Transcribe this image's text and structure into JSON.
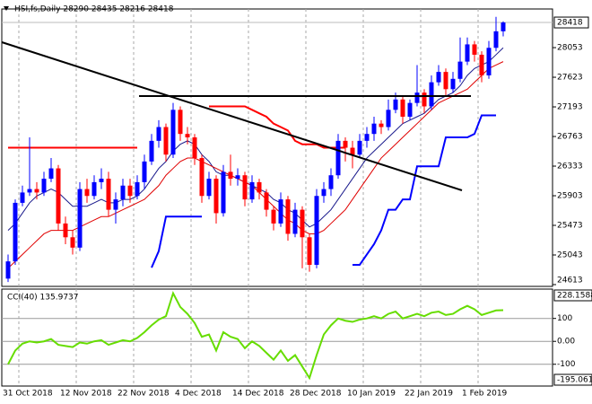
{
  "chart_data": [
    {
      "type": "candlestick",
      "title": "HSI,fs,Daily  28290 28435 28216 28418",
      "categories": [
        "31 Oct 2018",
        null,
        null,
        null,
        null,
        null,
        null,
        null,
        "12 Nov 2018",
        null,
        null,
        null,
        null,
        null,
        null,
        null,
        "22 Nov 2018",
        null,
        null,
        null,
        null,
        null,
        null,
        null,
        "4 Dec 2018",
        null,
        null,
        null,
        null,
        null,
        null,
        null,
        "14 Dec 2018",
        null,
        null,
        null,
        null,
        null,
        null,
        null,
        "28 Dec 2018",
        null,
        null,
        null,
        null,
        null,
        null,
        null,
        "10 Jan 2019",
        null,
        null,
        null,
        null,
        null,
        null,
        null,
        "22 Jan 2019",
        null,
        null,
        null,
        null,
        null,
        null,
        null,
        "1 Feb 2019",
        null,
        null,
        null,
        null,
        null
      ],
      "open": [
        24700,
        24950,
        25800,
        25950,
        26000,
        25950,
        26150,
        26300,
        25500,
        25300,
        25150,
        26000,
        25900,
        26100,
        26150,
        25700,
        25850,
        26050,
        25900,
        26100,
        26400,
        26700,
        26900,
        26500,
        27150,
        26800,
        26750,
        26450,
        25900,
        26150,
        25650,
        26250,
        26150,
        26200,
        25850,
        26100,
        25950,
        25700,
        25500,
        25850,
        25350,
        25700,
        25300,
        24900,
        25900,
        26000,
        26200,
        26700,
        26600,
        26500,
        26700,
        26800,
        26950,
        26900,
        27150,
        27300,
        27050,
        27250,
        27400,
        27200,
        27550,
        27700,
        27450,
        27600,
        27850,
        28100,
        27950,
        27650,
        28050,
        28290
      ],
      "high": [
        25050,
        25850,
        26050,
        26750,
        26100,
        26250,
        26450,
        26350,
        25600,
        25400,
        26100,
        26150,
        26200,
        26300,
        26250,
        25950,
        26150,
        26150,
        26200,
        26500,
        26800,
        27000,
        26950,
        27250,
        27200,
        26900,
        26800,
        26500,
        26250,
        26200,
        26350,
        26500,
        26300,
        26250,
        26200,
        26150,
        26000,
        25750,
        25950,
        25900,
        25800,
        25750,
        25350,
        26000,
        26100,
        26300,
        26800,
        26750,
        26700,
        26800,
        26900,
        27050,
        27000,
        27300,
        27400,
        27350,
        27300,
        27800,
        27450,
        27650,
        27800,
        27750,
        27700,
        28200,
        28200,
        28150,
        28000,
        28150,
        28500,
        28435
      ],
      "low": [
        24650,
        24900,
        25750,
        25900,
        25850,
        25900,
        26100,
        25400,
        25200,
        25050,
        25100,
        25800,
        25850,
        26000,
        25600,
        25500,
        25750,
        25800,
        25850,
        26000,
        26350,
        26600,
        26400,
        26450,
        26700,
        26650,
        26350,
        25800,
        25850,
        25500,
        25600,
        26050,
        26050,
        25750,
        25800,
        25850,
        25600,
        25400,
        25450,
        25250,
        25300,
        24850,
        24800,
        24850,
        25800,
        25900,
        26150,
        26400,
        26300,
        26450,
        26600,
        26700,
        26800,
        26850,
        27100,
        26950,
        27000,
        27200,
        27100,
        27150,
        27500,
        27350,
        27400,
        27550,
        27800,
        27850,
        27550,
        27600,
        28000,
        28216
      ],
      "close": [
        24950,
        25800,
        25950,
        26000,
        25950,
        26150,
        26300,
        25500,
        25300,
        25150,
        26000,
        25900,
        26100,
        26150,
        25700,
        25850,
        26050,
        25900,
        26100,
        26400,
        26700,
        26900,
        26500,
        27150,
        26800,
        26750,
        26450,
        25900,
        26150,
        25650,
        26250,
        26150,
        26200,
        25850,
        26100,
        25950,
        25700,
        25500,
        25850,
        25350,
        25700,
        25300,
        24900,
        25900,
        26000,
        26200,
        26700,
        26600,
        26500,
        26700,
        26800,
        26950,
        26900,
        27150,
        27300,
        27050,
        27250,
        27400,
        27200,
        27550,
        27700,
        27450,
        27600,
        27850,
        28100,
        27950,
        27650,
        28050,
        28290,
        28418
      ],
      "up_color": "#0000ff",
      "down_color": "#ff0000",
      "lines": [
        {
          "color": "#1a1a8c",
          "width": 1,
          "values": [
            25400,
            25500,
            25650,
            25800,
            25900,
            25950,
            26000,
            25950,
            25850,
            25750,
            25750,
            25750,
            25800,
            25850,
            25800,
            25800,
            25850,
            25850,
            25900,
            26000,
            26150,
            26300,
            26400,
            26550,
            26650,
            26700,
            26650,
            26500,
            26400,
            26250,
            26200,
            26200,
            26150,
            26100,
            26050,
            26000,
            25950,
            25850,
            25800,
            25700,
            25650,
            25550,
            25450,
            25500,
            25600,
            25700,
            25850,
            26000,
            26150,
            26300,
            26450,
            26550,
            26650,
            26750,
            26850,
            26950,
            27000,
            27050,
            27100,
            27200,
            27300,
            27350,
            27400,
            27500,
            27650,
            27750,
            27800,
            27850,
            27950,
            28050
          ]
        },
        {
          "color": "#e00000",
          "width": 1,
          "values": [
            24850,
            24950,
            25050,
            25150,
            25250,
            25350,
            25400,
            25400,
            25400,
            25400,
            25450,
            25500,
            25550,
            25600,
            25600,
            25650,
            25700,
            25750,
            25800,
            25850,
            25950,
            26050,
            26200,
            26300,
            26400,
            26450,
            26450,
            26400,
            26350,
            26300,
            26250,
            26200,
            26150,
            26100,
            26050,
            25950,
            25850,
            25750,
            25650,
            25550,
            25500,
            25400,
            25350,
            25350,
            25400,
            25500,
            25600,
            25700,
            25850,
            26000,
            26150,
            26300,
            26450,
            26550,
            26650,
            26750,
            26850,
            26950,
            27050,
            27150,
            27250,
            27300,
            27350,
            27400,
            27450,
            27550,
            27650,
            27750,
            27800,
            27850
          ]
        },
        {
          "color": "#ff0000",
          "width": 2,
          "values": [
            26600,
            26600,
            26600,
            26600,
            26600,
            26600,
            26600,
            26600,
            26600,
            26600,
            26600,
            26600,
            26600,
            26600,
            26600,
            26600,
            26600,
            26600,
            26600,
            null,
            null,
            null,
            null,
            null,
            null,
            null,
            null,
            null,
            27200,
            27200,
            27200,
            27200,
            27200,
            27200,
            27150,
            27100,
            27050,
            26950,
            26900,
            26850,
            26700,
            26650,
            26650,
            26650,
            26600,
            26600,
            26600,
            26600,
            null,
            null,
            null,
            null,
            null,
            null,
            null,
            null,
            null,
            null,
            null,
            null,
            null,
            null,
            null,
            null,
            null,
            null,
            null,
            null,
            null,
            null
          ]
        },
        {
          "color": "#0000ff",
          "width": 2,
          "values": [
            null,
            null,
            null,
            null,
            null,
            null,
            null,
            null,
            null,
            null,
            null,
            null,
            null,
            null,
            null,
            null,
            null,
            null,
            null,
            null,
            24860,
            25100,
            25600,
            25600,
            25600,
            25600,
            25600,
            25600,
            null,
            null,
            null,
            null,
            null,
            null,
            null,
            null,
            null,
            null,
            null,
            null,
            null,
            null,
            null,
            null,
            null,
            null,
            null,
            null,
            24900,
            24900,
            25050,
            25200,
            25400,
            25700,
            25700,
            25850,
            25850,
            26330,
            26330,
            26330,
            26330,
            26750,
            26750,
            26750,
            26750,
            26800,
            27070,
            27070,
            27070,
            null
          ]
        }
      ],
      "last_price": 28418,
      "ylim": [
        24587,
        28614
      ],
      "yticks": [
        24613,
        25043,
        25473,
        25903,
        26333,
        26763,
        27193,
        27623,
        28053
      ],
      "grid": true
    },
    {
      "type": "line",
      "title": "CCI(40) 135.9737",
      "color": "#66dd00",
      "values": [
        -100,
        -40,
        -10,
        0,
        -5,
        0,
        10,
        -15,
        -20,
        -25,
        -5,
        -10,
        0,
        5,
        -15,
        -5,
        5,
        0,
        15,
        40,
        70,
        95,
        110,
        210,
        150,
        120,
        80,
        20,
        30,
        -40,
        40,
        20,
        10,
        -30,
        0,
        -20,
        -50,
        -80,
        -40,
        -85,
        -60,
        -110,
        -160,
        -60,
        30,
        70,
        100,
        90,
        85,
        95,
        100,
        110,
        100,
        120,
        130,
        100,
        110,
        120,
        110,
        125,
        130,
        115,
        120,
        140,
        155,
        140,
        115,
        125,
        135,
        135.9737
      ],
      "ylim": [
        -195.061,
        228.1588
      ],
      "yticks": [
        228.1588,
        100,
        {
          "value": 0,
          "label": "0.00"
        },
        -100,
        -195.061
      ]
    }
  ]
}
